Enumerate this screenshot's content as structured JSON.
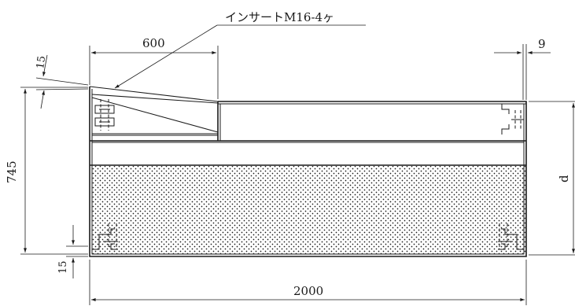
{
  "labels": {
    "insert": "インサートM16-4ヶ",
    "dim_600": "600",
    "dim_9": "9",
    "dim_15_top": "15",
    "dim_745": "745",
    "dim_d": "d",
    "dim_15_bottom": "15",
    "dim_2000": "2000"
  },
  "colors": {
    "line": "#1a1a1a",
    "background": "#ffffff"
  }
}
